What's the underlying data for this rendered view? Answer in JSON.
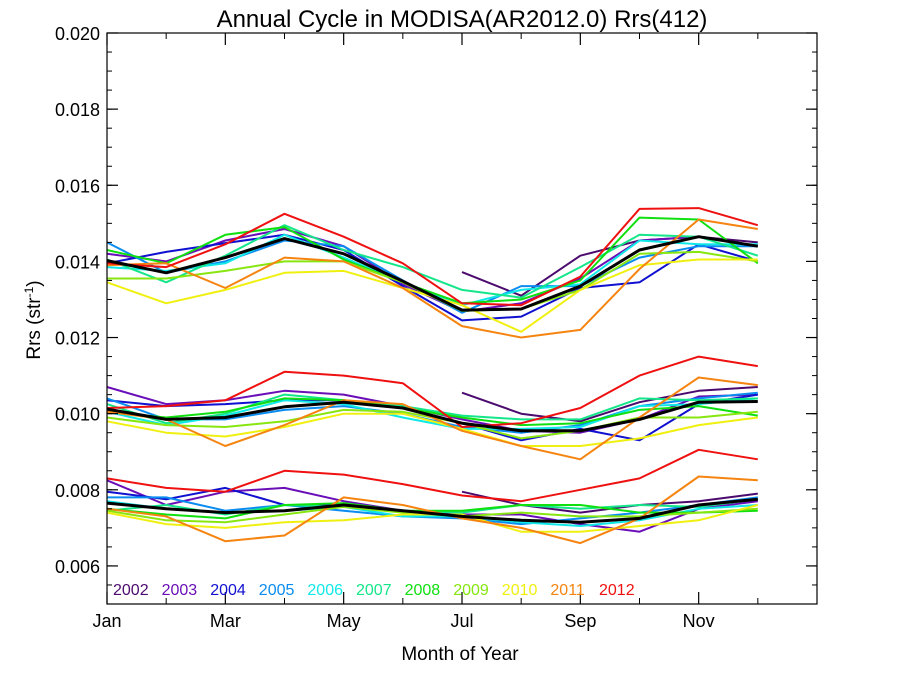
{
  "chart_data": {
    "type": "line",
    "title": "Annual Cycle in MODISA(AR2012.0) Rrs(412)",
    "xlabel": "Month of Year",
    "ylabel": "Rrs (str⁻¹)",
    "xlim": [
      1,
      13
    ],
    "ylim": [
      0.005,
      0.02
    ],
    "xticks": [
      1,
      3,
      5,
      7,
      9,
      11
    ],
    "xtick_labels": [
      "Jan",
      "Mar",
      "May",
      "Jul",
      "Sep",
      "Nov"
    ],
    "yticks": [
      0.006,
      0.008,
      0.01,
      0.012,
      0.014,
      0.016,
      0.018,
      0.02
    ],
    "ytick_labels": [
      "0.006",
      "0.008",
      "0.010",
      "0.012",
      "0.014",
      "0.016",
      "0.018",
      "0.020"
    ],
    "x": [
      1,
      2,
      3,
      4,
      5,
      6,
      7,
      8,
      9,
      10,
      11,
      12
    ],
    "grid": false,
    "legend_position": "bottom-left inside plot",
    "series": [
      {
        "name": "2002",
        "color": "#4b0a6e",
        "upper": [
          null,
          null,
          null,
          null,
          null,
          null,
          0.01372,
          0.0131,
          0.01415,
          0.01455,
          0.01465,
          0.0145
        ],
        "middle": [
          null,
          null,
          null,
          null,
          null,
          null,
          0.01055,
          0.01,
          0.0098,
          0.0103,
          0.0106,
          0.0107
        ],
        "lower": [
          null,
          null,
          null,
          null,
          null,
          null,
          0.00795,
          0.0076,
          0.0074,
          0.0076,
          0.0077,
          0.0079
        ]
      },
      {
        "name": "2003",
        "color": "#6a0fb8",
        "upper": [
          0.0142,
          0.014,
          0.01455,
          0.01485,
          0.0144,
          0.0134,
          0.01268,
          0.0129,
          0.01355,
          0.01455,
          0.01465,
          0.0144
        ],
        "middle": [
          0.0107,
          0.01025,
          0.01035,
          0.0106,
          0.0105,
          0.0102,
          0.00985,
          0.00955,
          0.0095,
          0.00985,
          0.01045,
          0.0105
        ],
        "lower": [
          0.00825,
          0.0076,
          0.00795,
          0.00805,
          0.0077,
          0.00745,
          0.00735,
          0.00735,
          0.0071,
          0.0069,
          0.0075,
          0.0077
        ]
      },
      {
        "name": "2004",
        "color": "#1010d0",
        "upper": [
          0.01395,
          0.01425,
          0.01448,
          0.0147,
          0.0143,
          0.01335,
          0.01245,
          0.01255,
          0.0133,
          0.01345,
          0.01445,
          0.014
        ],
        "middle": [
          0.01035,
          0.0102,
          0.01025,
          0.01035,
          0.01035,
          0.01015,
          0.00975,
          0.0093,
          0.0096,
          0.0093,
          0.01025,
          0.0105
        ],
        "lower": [
          0.00795,
          0.00775,
          0.00805,
          0.0076,
          0.0076,
          0.00745,
          0.0073,
          0.0072,
          0.00715,
          0.00725,
          0.0076,
          0.00775
        ]
      },
      {
        "name": "2005",
        "color": "#0a8cf0",
        "upper": [
          0.0145,
          0.0137,
          0.014,
          0.01455,
          0.0144,
          0.0135,
          0.01265,
          0.01335,
          0.01335,
          0.0141,
          0.0144,
          0.0144
        ],
        "middle": [
          0.0104,
          0.00985,
          0.00985,
          0.0101,
          0.0102,
          0.01,
          0.00965,
          0.0095,
          0.0097,
          0.0102,
          0.0104,
          0.01055
        ],
        "lower": [
          0.0078,
          0.0078,
          0.00745,
          0.0076,
          0.00745,
          0.0073,
          0.00725,
          0.0071,
          0.00725,
          0.0074,
          0.0076,
          0.0078
        ]
      },
      {
        "name": "2006",
        "color": "#10e8e8",
        "upper": [
          0.01385,
          0.01375,
          0.01395,
          0.0147,
          0.0141,
          0.01345,
          0.01285,
          0.01325,
          0.0134,
          0.01455,
          0.01445,
          0.01445
        ],
        "middle": [
          0.01005,
          0.0097,
          0.00995,
          0.01035,
          0.01025,
          0.0099,
          0.0096,
          0.0096,
          0.00965,
          0.0102,
          0.01025,
          0.0104
        ],
        "lower": [
          0.0077,
          0.0075,
          0.0074,
          0.00745,
          0.00755,
          0.0073,
          0.0073,
          0.00715,
          0.00705,
          0.0072,
          0.0075,
          0.0076
        ]
      },
      {
        "name": "2007",
        "color": "#14e68a",
        "upper": [
          0.01405,
          0.01345,
          0.01415,
          0.01495,
          0.0143,
          0.01385,
          0.01325,
          0.01305,
          0.01385,
          0.0147,
          0.01465,
          0.01415
        ],
        "middle": [
          0.01025,
          0.00975,
          0.01,
          0.0105,
          0.01035,
          0.0102,
          0.00995,
          0.00985,
          0.00985,
          0.0104,
          0.01035,
          0.0104
        ],
        "lower": [
          0.00745,
          0.0076,
          0.00735,
          0.0076,
          0.00755,
          0.00745,
          0.0074,
          0.0076,
          0.0075,
          0.0076,
          0.00755,
          0.00775
        ]
      },
      {
        "name": "2008",
        "color": "#10e010",
        "upper": [
          0.0143,
          0.01395,
          0.0147,
          0.0149,
          0.01405,
          0.01345,
          0.0129,
          0.013,
          0.0135,
          0.01515,
          0.0151,
          0.01395
        ],
        "middle": [
          0.01005,
          0.0099,
          0.01005,
          0.0104,
          0.01035,
          0.01015,
          0.0099,
          0.0097,
          0.00975,
          0.0101,
          0.0102,
          0.00995
        ],
        "lower": [
          0.0075,
          0.00735,
          0.00725,
          0.0076,
          0.00765,
          0.00745,
          0.00745,
          0.0076,
          0.0076,
          0.0074,
          0.0074,
          0.00745
        ]
      },
      {
        "name": "2009",
        "color": "#88e610",
        "upper": [
          0.01355,
          0.01355,
          0.01375,
          0.014,
          0.014,
          0.01345,
          0.0127,
          0.01275,
          0.01325,
          0.0142,
          0.01425,
          0.014
        ],
        "middle": [
          0.0099,
          0.0097,
          0.00965,
          0.0098,
          0.0101,
          0.01005,
          0.00975,
          0.00935,
          0.00955,
          0.0099,
          0.0099,
          0.01005
        ],
        "lower": [
          0.00745,
          0.0072,
          0.00715,
          0.00735,
          0.00755,
          0.0074,
          0.0073,
          0.0074,
          0.0073,
          0.0073,
          0.0074,
          0.0075
        ]
      },
      {
        "name": "2010",
        "color": "#f0f010",
        "upper": [
          0.01345,
          0.0129,
          0.01325,
          0.0137,
          0.01375,
          0.0133,
          0.01285,
          0.01215,
          0.01325,
          0.0139,
          0.01405,
          0.01405
        ],
        "middle": [
          0.0098,
          0.0095,
          0.0094,
          0.00965,
          0.01,
          0.01,
          0.0096,
          0.00915,
          0.00915,
          0.00935,
          0.0097,
          0.0099
        ],
        "lower": [
          0.0074,
          0.0071,
          0.007,
          0.00715,
          0.0072,
          0.00735,
          0.00735,
          0.0069,
          0.0069,
          0.00705,
          0.0072,
          0.0076
        ]
      },
      {
        "name": "2011",
        "color": "#f58410",
        "upper": [
          0.0139,
          0.01395,
          0.0133,
          0.0141,
          0.014,
          0.0133,
          0.0123,
          0.012,
          0.0122,
          0.0138,
          0.0151,
          0.01485
        ],
        "middle": [
          0.01005,
          0.00985,
          0.00915,
          0.0097,
          0.01035,
          0.01025,
          0.00955,
          0.00915,
          0.0088,
          0.0099,
          0.01095,
          0.01075
        ],
        "lower": [
          0.0075,
          0.0073,
          0.00665,
          0.0068,
          0.0078,
          0.0076,
          0.00725,
          0.007,
          0.0066,
          0.00725,
          0.00835,
          0.00825
        ]
      },
      {
        "name": "2012",
        "color": "#ef1010",
        "upper": [
          0.01395,
          0.01385,
          0.01445,
          0.01525,
          0.01465,
          0.01395,
          0.0129,
          0.01285,
          0.0136,
          0.01538,
          0.0154,
          0.01495
        ],
        "middle": [
          0.01015,
          0.0102,
          0.01035,
          0.0111,
          0.011,
          0.0108,
          0.00965,
          0.00975,
          0.01015,
          0.011,
          0.0115,
          0.01125
        ],
        "lower": [
          0.0083,
          0.00805,
          0.00795,
          0.0085,
          0.0084,
          0.00815,
          0.00785,
          0.0077,
          0.008,
          0.0083,
          0.00905,
          0.0088
        ]
      },
      {
        "color": "#000000",
        "upper": [
          0.01402,
          0.0137,
          0.0141,
          0.0146,
          0.0142,
          0.01348,
          0.01272,
          0.01275,
          0.01335,
          0.0143,
          0.01465,
          0.0144
        ],
        "middle": [
          0.01012,
          0.00985,
          0.0099,
          0.01018,
          0.0103,
          0.01015,
          0.00975,
          0.00955,
          0.00955,
          0.00985,
          0.0103,
          0.01032
        ],
        "lower": [
          0.00765,
          0.0075,
          0.0074,
          0.00745,
          0.0076,
          0.00745,
          0.0073,
          0.0072,
          0.00715,
          0.00725,
          0.0076,
          0.00775
        ]
      }
    ]
  }
}
